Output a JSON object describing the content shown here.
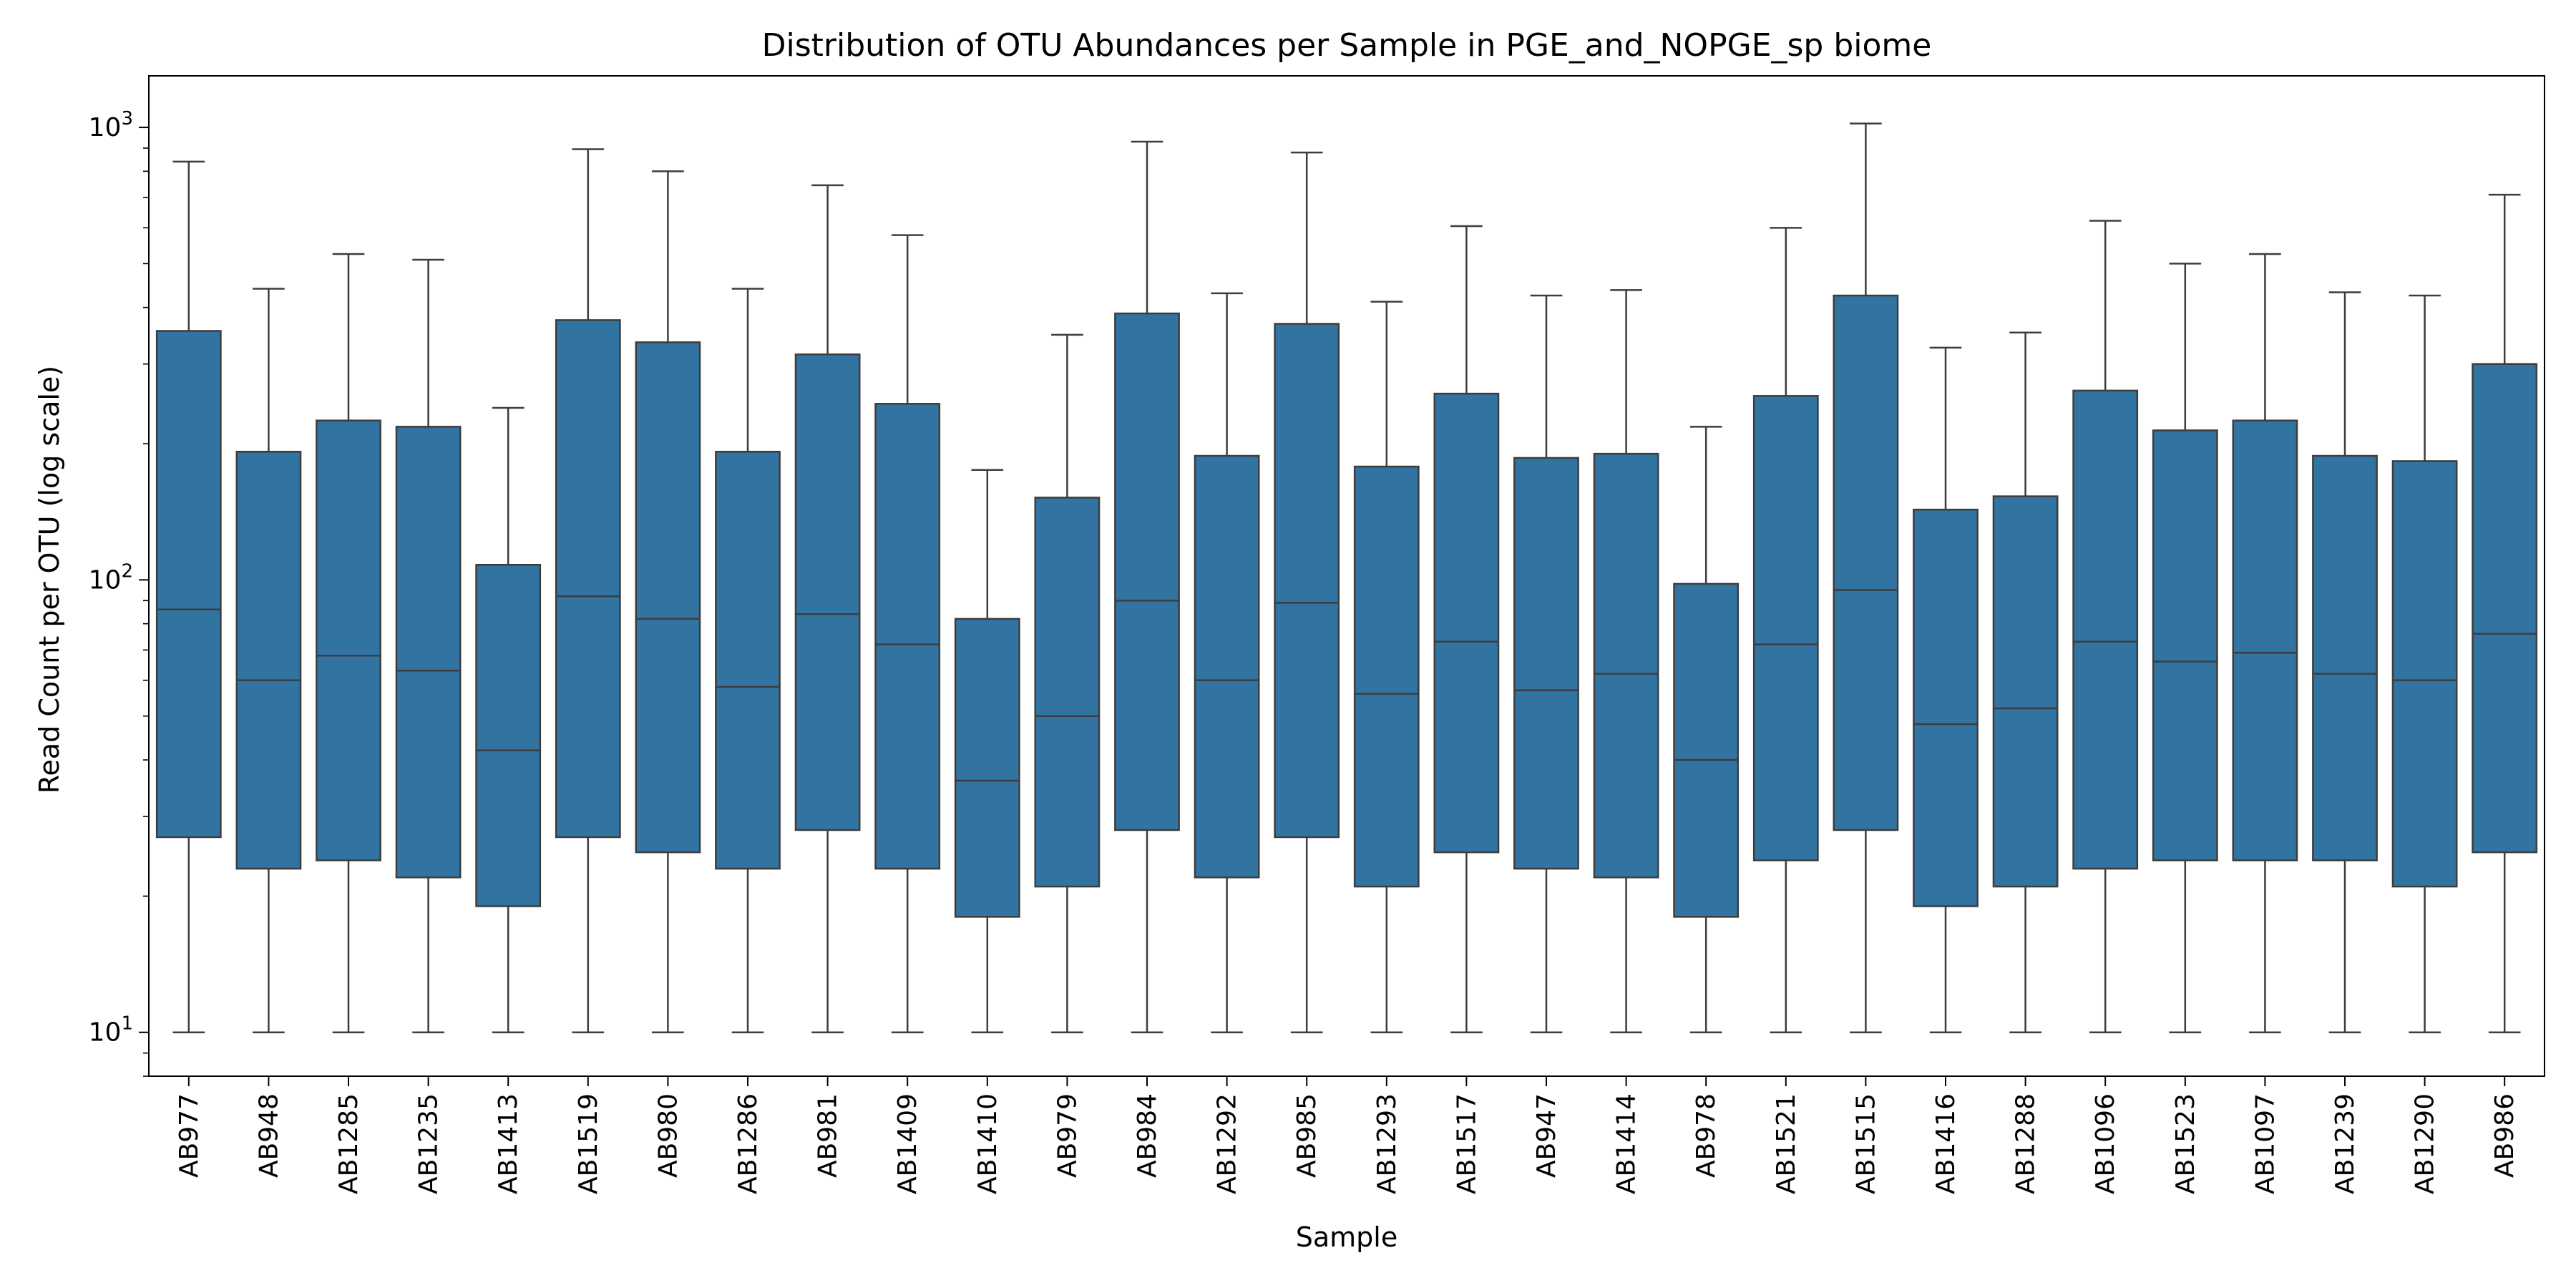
{
  "chart_data": {
    "type": "box",
    "title": "Distribution of OTU Abundances per Sample in PGE_and_NOPGE_sp biome",
    "xlabel": "Sample",
    "ylabel": "Read Count per OTU (log scale)",
    "yscale": "log",
    "ylim": [
      8,
      1300
    ],
    "yticks": [
      {
        "value": 10,
        "base": "10",
        "exp": "1"
      },
      {
        "value": 100,
        "base": "10",
        "exp": "2"
      },
      {
        "value": 1000,
        "base": "10",
        "exp": "3"
      }
    ],
    "grid": false,
    "legend": "none",
    "colors": {
      "box": "#3274a1",
      "line": "#3d3d3d"
    },
    "categories": [
      "AB977",
      "AB948",
      "AB1285",
      "AB1235",
      "AB1413",
      "AB1519",
      "AB980",
      "AB1286",
      "AB981",
      "AB1409",
      "AB1410",
      "AB979",
      "AB984",
      "AB1292",
      "AB985",
      "AB1293",
      "AB1517",
      "AB947",
      "AB1414",
      "AB978",
      "AB1521",
      "AB1515",
      "AB1416",
      "AB1288",
      "AB1096",
      "AB1523",
      "AB1097",
      "AB1239",
      "AB1290",
      "AB986"
    ],
    "boxes": [
      {
        "whislo": 10,
        "q1": 27,
        "med": 86,
        "q3": 355,
        "whishi": 840
      },
      {
        "whislo": 10,
        "q1": 23,
        "med": 60,
        "q3": 192,
        "whishi": 440
      },
      {
        "whislo": 10,
        "q1": 24,
        "med": 68,
        "q3": 225,
        "whishi": 525
      },
      {
        "whislo": 10,
        "q1": 22,
        "med": 63,
        "q3": 218,
        "whishi": 510
      },
      {
        "whislo": 10,
        "q1": 19,
        "med": 42,
        "q3": 108,
        "whishi": 240
      },
      {
        "whislo": 10,
        "q1": 27,
        "med": 92,
        "q3": 375,
        "whishi": 895
      },
      {
        "whislo": 10,
        "q1": 25,
        "med": 82,
        "q3": 335,
        "whishi": 800
      },
      {
        "whislo": 10,
        "q1": 23,
        "med": 58,
        "q3": 192,
        "whishi": 440
      },
      {
        "whislo": 10,
        "q1": 28,
        "med": 84,
        "q3": 315,
        "whishi": 745
      },
      {
        "whislo": 10,
        "q1": 23,
        "med": 72,
        "q3": 245,
        "whishi": 578
      },
      {
        "whislo": 10,
        "q1": 18,
        "med": 36,
        "q3": 82,
        "whishi": 175
      },
      {
        "whislo": 10,
        "q1": 21,
        "med": 50,
        "q3": 152,
        "whishi": 348
      },
      {
        "whislo": 10,
        "q1": 28,
        "med": 90,
        "q3": 388,
        "whishi": 930
      },
      {
        "whislo": 10,
        "q1": 22,
        "med": 60,
        "q3": 188,
        "whishi": 430
      },
      {
        "whislo": 10,
        "q1": 27,
        "med": 89,
        "q3": 368,
        "whishi": 880
      },
      {
        "whislo": 10,
        "q1": 21,
        "med": 56,
        "q3": 178,
        "whishi": 412
      },
      {
        "whislo": 10,
        "q1": 25,
        "med": 73,
        "q3": 258,
        "whishi": 605
      },
      {
        "whislo": 10,
        "q1": 23,
        "med": 57,
        "q3": 186,
        "whishi": 425
      },
      {
        "whislo": 10,
        "q1": 22,
        "med": 62,
        "q3": 190,
        "whishi": 437
      },
      {
        "whislo": 10,
        "q1": 18,
        "med": 40,
        "q3": 98,
        "whishi": 218
      },
      {
        "whislo": 10,
        "q1": 24,
        "med": 72,
        "q3": 255,
        "whishi": 600
      },
      {
        "whislo": 10,
        "q1": 28,
        "med": 95,
        "q3": 425,
        "whishi": 1020
      },
      {
        "whislo": 10,
        "q1": 19,
        "med": 48,
        "q3": 143,
        "whishi": 326
      },
      {
        "whislo": 10,
        "q1": 21,
        "med": 52,
        "q3": 153,
        "whishi": 352
      },
      {
        "whislo": 10,
        "q1": 23,
        "med": 73,
        "q3": 262,
        "whishi": 622
      },
      {
        "whislo": 10,
        "q1": 24,
        "med": 66,
        "q3": 214,
        "whishi": 500
      },
      {
        "whislo": 10,
        "q1": 24,
        "med": 69,
        "q3": 225,
        "whishi": 525
      },
      {
        "whislo": 10,
        "q1": 24,
        "med": 62,
        "q3": 188,
        "whishi": 432
      },
      {
        "whislo": 10,
        "q1": 21,
        "med": 60,
        "q3": 183,
        "whishi": 425
      },
      {
        "whislo": 10,
        "q1": 25,
        "med": 76,
        "q3": 300,
        "whishi": 710
      }
    ]
  }
}
